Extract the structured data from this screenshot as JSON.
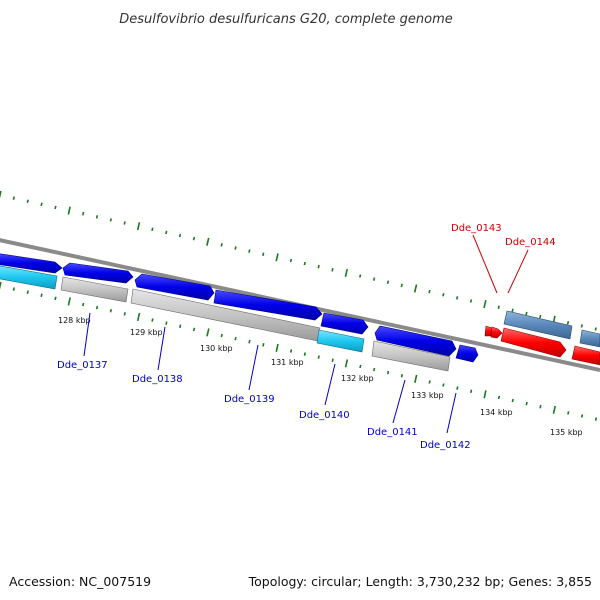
{
  "title": "Desulfovibrio desulfuricans G20, complete genome",
  "footer": {
    "accession": "Accession: NC_007519",
    "summary": "Topology: circular; Length: 3,730,232 bp; Genes: 3,855"
  },
  "kbp_labels": [
    "128 kbp",
    "129 kbp",
    "130 kbp",
    "131 kbp",
    "132 kbp",
    "133 kbp",
    "134 kbp",
    "135 kbp"
  ],
  "gene_labels": {
    "blue": [
      "Dde_0137",
      "Dde_0138",
      "Dde_0139",
      "Dde_0140",
      "Dde_0141",
      "Dde_0142"
    ],
    "red": [
      "Dde_0143",
      "Dde_0144"
    ]
  },
  "colors": {
    "blue": "#1010e8",
    "cyan": "#22ccf0",
    "grey": "#c8c8c8",
    "red": "#ff1010",
    "steel": "#5a88bb",
    "tick": "#1a7a1a",
    "blue_label": "#0000cc",
    "red_label": "#cc0000"
  }
}
